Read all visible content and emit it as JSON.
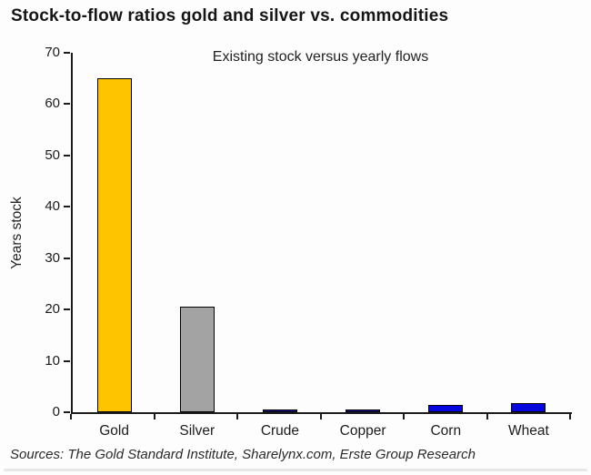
{
  "title": "Stock-to-flow ratios gold and silver vs. commodities",
  "source": "Sources: The Gold Standard Institute, Sharelynx.com, Erste Group Research",
  "chart_data": {
    "type": "bar",
    "title": "Stock-to-flow ratios gold and silver vs. commodities",
    "subtitle": "Existing stock versus yearly flows",
    "categories": [
      "Gold",
      "Silver",
      "Crude",
      "Copper",
      "Corn",
      "Wheat"
    ],
    "values": [
      65,
      20.5,
      0.6,
      0.45,
      1.5,
      1.8
    ],
    "bar_colors": [
      "#ffc400",
      "#a3a3a3",
      "#16168c",
      "#16168c",
      "#0606df",
      "#0606df"
    ],
    "xlabel": "",
    "ylabel": "Years stock",
    "ylim": [
      0,
      70
    ],
    "ytick_step": 10,
    "yticks": [
      0,
      10,
      20,
      30,
      40,
      50,
      60,
      70
    ],
    "grid": false,
    "legend": null,
    "colors": {
      "gold_bar": "#ffc400",
      "silver_bar": "#a3a3a3",
      "dark_blue_bar": "#16168c",
      "bright_blue_bar": "#0606df",
      "axis": "#1c1c1c",
      "background": "#fdfdfd"
    }
  }
}
